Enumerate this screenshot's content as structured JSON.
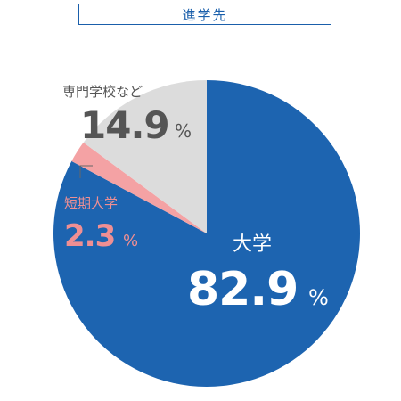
{
  "chart_data": {
    "type": "pie",
    "title": "進学先",
    "unit": "%",
    "slices": [
      {
        "label": "大学",
        "value": 82.9,
        "value_text": "82.9",
        "color": "#1d64b0"
      },
      {
        "label": "短期大学",
        "value": 2.3,
        "value_text": "2.3",
        "color": "#f4a2a4"
      },
      {
        "label": "専門学校など",
        "value": 14.9,
        "value_text": "14.9",
        "color": "#dcdcdc"
      }
    ]
  },
  "colors": {
    "university_text": "#ffffff",
    "junior_text": "#ef8f93",
    "vocational_text": "#555555"
  }
}
